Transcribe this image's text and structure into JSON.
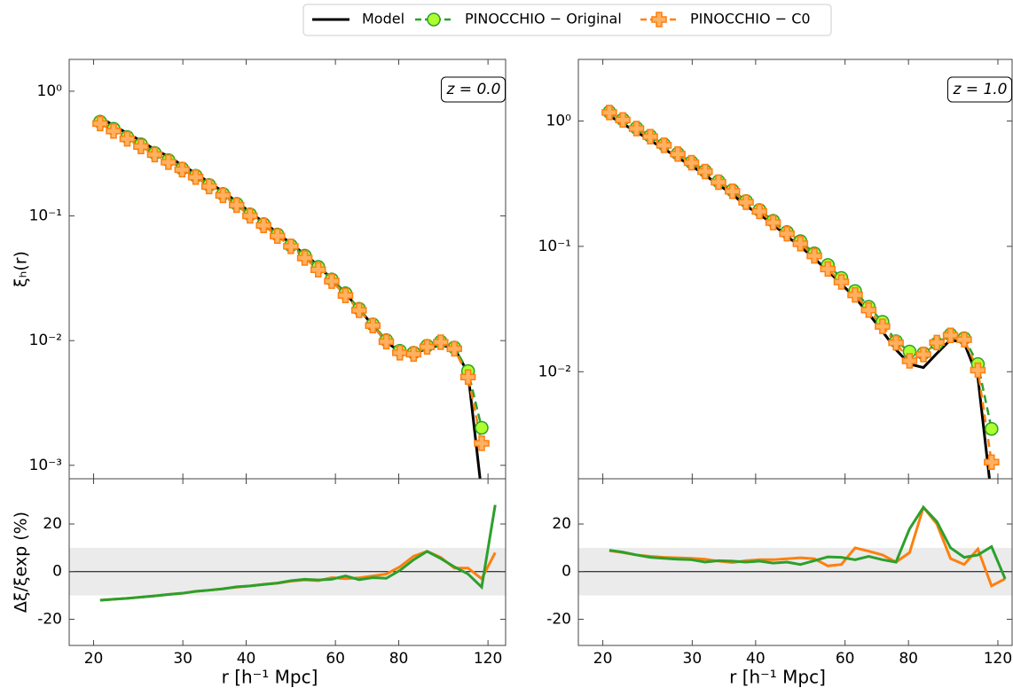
{
  "chart_data": [
    {
      "type": "line",
      "xscale": "log",
      "yscale": "log",
      "legend": "top",
      "annotation": "z = 0.0",
      "ylabel": "ξₕ(r)",
      "show_xtick_labels": false,
      "x": [
        20.6,
        21.9,
        23.3,
        24.8,
        26.4,
        28.1,
        29.9,
        31.8,
        33.8,
        36.0,
        38.3,
        40.7,
        43.3,
        46.1,
        49.0,
        52.2,
        55.5,
        59.0,
        62.8,
        66.8,
        71.1,
        75.6,
        80.4,
        85.6,
        91.0,
        96.8,
        103.0,
        109.6,
        116.6
      ],
      "series": [
        {
          "name": "Model",
          "color": "#000000",
          "linestyle": "solid",
          "values": [
            0.62,
            0.53,
            0.46,
            0.4,
            0.34,
            0.3,
            0.255,
            0.22,
            0.185,
            0.157,
            0.13,
            0.107,
            0.089,
            0.073,
            0.06,
            0.049,
            0.04,
            0.031,
            0.024,
            0.0178,
            0.0133,
            0.0098,
            0.0081,
            0.0078,
            0.0087,
            0.0092,
            0.0087,
            0.0055,
            0.0006
          ]
        },
        {
          "name": "PINOCCHIO − Original",
          "color": "#2ca02c",
          "linestyle": "dashed",
          "marker": "circle",
          "marker_color": "#adff2f",
          "values": [
            0.57,
            0.5,
            0.43,
            0.375,
            0.32,
            0.28,
            0.24,
            0.21,
            0.177,
            0.15,
            0.125,
            0.103,
            0.086,
            0.071,
            0.058,
            0.048,
            0.039,
            0.031,
            0.024,
            0.018,
            0.0135,
            0.0101,
            0.0083,
            0.008,
            0.0091,
            0.0098,
            0.0088,
            0.0057,
            0.002
          ]
        },
        {
          "name": "PINOCCHIO − C0",
          "color": "#ff7f0e",
          "linestyle": "dashed",
          "marker": "plus",
          "marker_color": "#ffb060",
          "values": [
            0.55,
            0.48,
            0.415,
            0.36,
            0.31,
            0.27,
            0.235,
            0.205,
            0.172,
            0.146,
            0.122,
            0.1,
            0.084,
            0.069,
            0.057,
            0.046,
            0.037,
            0.03,
            0.023,
            0.0175,
            0.0132,
            0.0098,
            0.008,
            0.0078,
            0.0089,
            0.0097,
            0.0086,
            0.0051,
            0.0015
          ]
        }
      ],
      "xlim": [
        17.9,
        130
      ],
      "xticks": [
        20,
        30,
        40,
        60,
        80,
        120
      ],
      "ylim": [
        0.00078,
        1.8
      ],
      "yticks": [
        {
          "value": 1,
          "label": "10⁰"
        },
        {
          "value": 0.1,
          "label": "10⁻¹"
        },
        {
          "value": 0.01,
          "label": "10⁻²"
        },
        {
          "value": 0.001,
          "label": "10⁻³"
        }
      ]
    },
    {
      "type": "line",
      "xscale": "log",
      "xlabel": "r [h⁻¹ Mpc]",
      "ylabel": "Δξ/ξexp (%)",
      "show_xtick_labels": true,
      "band": [
        -10,
        10
      ],
      "band_color": "#ebebeb",
      "hline": 0,
      "x": [
        20.6,
        21.9,
        23.3,
        24.8,
        26.4,
        28.1,
        29.9,
        31.8,
        33.8,
        36.0,
        38.3,
        40.7,
        43.3,
        46.1,
        49.0,
        52.2,
        55.5,
        59.0,
        62.8,
        66.8,
        71.1,
        75.6,
        80.4,
        85.6,
        91.0,
        96.8,
        103.0,
        109.6,
        116.6,
        124.0
      ],
      "series": [
        {
          "color": "#ff7f0e",
          "linestyle": "solid",
          "values": [
            -12,
            -11.6,
            -11.2,
            -10.7,
            -10.2,
            -9.6,
            -9.1,
            -8.3,
            -7.8,
            -7.2,
            -6.5,
            -6.0,
            -5.3,
            -4.9,
            -4.0,
            -3.5,
            -3.8,
            -2.5,
            -3.0,
            -2.6,
            -1.8,
            -1.0,
            2.0,
            6.5,
            8.5,
            6.0,
            1.5,
            1.5,
            -3.0,
            8
          ]
        },
        {
          "color": "#2ca02c",
          "linestyle": "solid",
          "values": [
            -12,
            -11.6,
            -11.2,
            -10.7,
            -10.2,
            -9.6,
            -9.1,
            -8.3,
            -7.8,
            -7.2,
            -6.4,
            -6.0,
            -5.4,
            -4.8,
            -3.8,
            -3.2,
            -3.5,
            -3.2,
            -1.8,
            -3.4,
            -2.5,
            -2.8,
            0.5,
            5.0,
            8.5,
            5.5,
            2.0,
            -1.0,
            -6.5,
            28
          ]
        }
      ],
      "xlim": [
        17.9,
        130
      ],
      "xticks": [
        20,
        30,
        40,
        60,
        80,
        120
      ],
      "ylim": [
        -31,
        39
      ],
      "yticks": [
        -20,
        0,
        20
      ]
    },
    {
      "type": "line",
      "xscale": "log",
      "yscale": "log",
      "annotation": "z = 1.0",
      "show_xtick_labels": false,
      "x": [
        20.6,
        21.9,
        23.3,
        24.8,
        26.4,
        28.1,
        29.9,
        31.8,
        33.8,
        36.0,
        38.3,
        40.7,
        43.3,
        46.1,
        49.0,
        52.2,
        55.5,
        59.0,
        62.8,
        66.8,
        71.1,
        75.6,
        80.4,
        85.6,
        91.0,
        96.8,
        103.0,
        109.6,
        116.6
      ],
      "series": [
        {
          "color": "#000000",
          "linestyle": "solid",
          "values": [
            1.1,
            0.95,
            0.82,
            0.7,
            0.6,
            0.51,
            0.44,
            0.37,
            0.31,
            0.26,
            0.21,
            0.18,
            0.15,
            0.12,
            0.1,
            0.08,
            0.064,
            0.05,
            0.039,
            0.029,
            0.021,
            0.015,
            0.0115,
            0.0108,
            0.014,
            0.018,
            0.017,
            0.009,
            0.001
          ]
        },
        {
          "color": "#2ca02c",
          "linestyle": "dashed",
          "marker": "circle",
          "marker_color": "#adff2f",
          "values": [
            1.18,
            1.03,
            0.88,
            0.76,
            0.65,
            0.55,
            0.47,
            0.4,
            0.33,
            0.28,
            0.23,
            0.195,
            0.16,
            0.13,
            0.11,
            0.088,
            0.071,
            0.056,
            0.044,
            0.033,
            0.025,
            0.0175,
            0.0145,
            0.014,
            0.0168,
            0.0198,
            0.0185,
            0.0115,
            0.0035
          ]
        },
        {
          "color": "#ff7f0e",
          "linestyle": "dashed",
          "marker": "plus",
          "marker_color": "#ffb060",
          "values": [
            1.17,
            1.02,
            0.87,
            0.75,
            0.64,
            0.545,
            0.465,
            0.395,
            0.325,
            0.275,
            0.225,
            0.19,
            0.155,
            0.126,
            0.105,
            0.084,
            0.066,
            0.052,
            0.041,
            0.031,
            0.023,
            0.017,
            0.0122,
            0.0137,
            0.0171,
            0.0195,
            0.018,
            0.0103,
            0.0019
          ]
        }
      ],
      "xlim": [
        17.9,
        128
      ],
      "xticks": [
        20,
        30,
        40,
        60,
        80,
        120
      ],
      "ylim": [
        0.0014,
        3.1
      ],
      "yticks": [
        {
          "value": 1,
          "label": "10⁰"
        },
        {
          "value": 0.1,
          "label": "10⁻¹"
        },
        {
          "value": 0.01,
          "label": "10⁻²"
        }
      ]
    },
    {
      "type": "line",
      "xscale": "log",
      "xlabel": "r [h⁻¹ Mpc]",
      "show_xtick_labels": true,
      "band": [
        -10,
        10
      ],
      "band_color": "#ebebeb",
      "hline": 0,
      "x": [
        20.6,
        21.9,
        23.3,
        24.8,
        26.4,
        28.1,
        29.9,
        31.8,
        33.8,
        36.0,
        38.3,
        40.7,
        43.3,
        46.1,
        49.0,
        52.2,
        55.5,
        59.0,
        62.8,
        66.8,
        71.1,
        75.6,
        80.4,
        85.6,
        91.0,
        96.8,
        103.0,
        109.6,
        116.6,
        124.0
      ],
      "series": [
        {
          "color": "#ff7f0e",
          "linestyle": "solid",
          "values": [
            8.8,
            8,
            7,
            6.4,
            6,
            5.8,
            5.6,
            5.2,
            4.4,
            3.8,
            4.6,
            5,
            5,
            5.4,
            5.8,
            5.4,
            2.4,
            3,
            10,
            8.6,
            7,
            4,
            8,
            27,
            20,
            5.5,
            3,
            9.5,
            -6,
            -3
          ]
        },
        {
          "color": "#2ca02c",
          "linestyle": "solid",
          "values": [
            9,
            8.2,
            7,
            6,
            5.6,
            5.2,
            5,
            4,
            4.6,
            4.4,
            4,
            4.4,
            3.6,
            4,
            3,
            4.6,
            6.2,
            6,
            5,
            6.4,
            5,
            4,
            18,
            27,
            21,
            10,
            6,
            7,
            10.5,
            -3
          ]
        }
      ],
      "xlim": [
        17.9,
        128
      ],
      "xticks": [
        20,
        30,
        40,
        60,
        80,
        120
      ],
      "ylim": [
        -31,
        39
      ],
      "yticks": [
        -20,
        0,
        20
      ]
    }
  ]
}
